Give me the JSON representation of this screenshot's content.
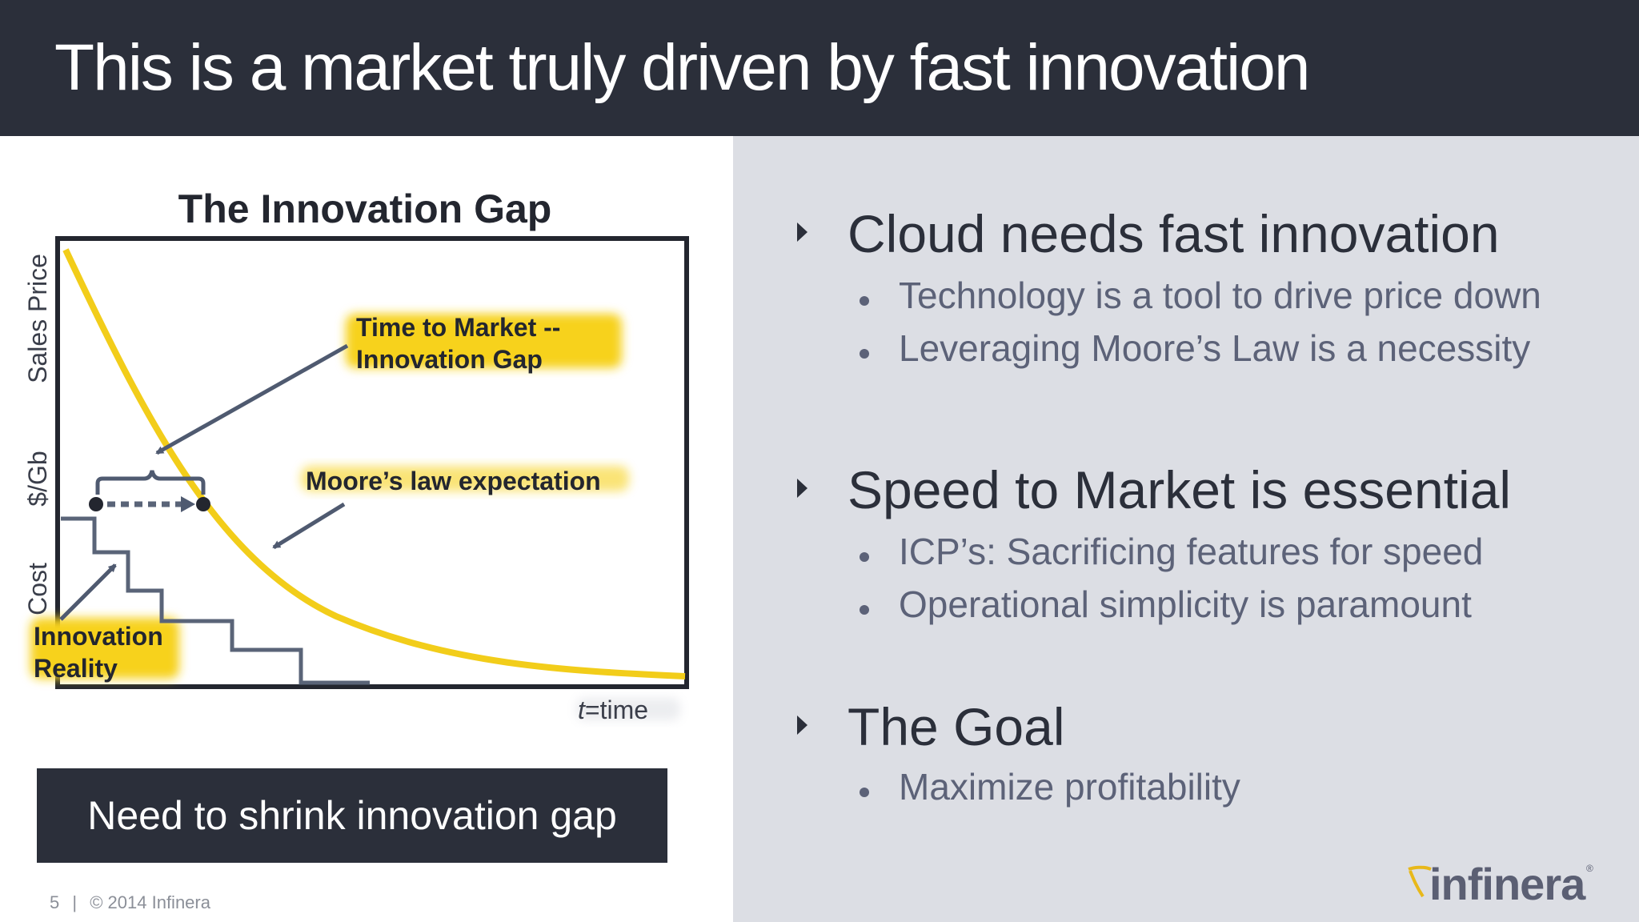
{
  "title": "This is a market truly driven by fast innovation",
  "diagram": {
    "title": "The Innovation Gap",
    "y_axis_labels": [
      "Sales Price",
      "$/Gb",
      "Cost"
    ],
    "x_axis_label_italic": "t",
    "x_axis_label_rest": "=time",
    "annotation_time_to_market_line1": "Time to Market --",
    "annotation_time_to_market_line2": "Innovation Gap",
    "annotation_moores_law": "Moore’s law expectation",
    "annotation_reality_line1": "Innovation",
    "annotation_reality_line2": "Reality",
    "colors": {
      "curve": "#f2cd1a",
      "highlight": "#f7d21f",
      "steps": "#5a6478",
      "frame": "#23262f",
      "arrows": "#4f5a70"
    }
  },
  "callout": "Need to shrink innovation gap",
  "footer": {
    "page_number": "5",
    "separator": "|",
    "copyright": "© 2014 Infinera"
  },
  "sections": [
    {
      "heading": "Cloud needs fast innovation",
      "items": [
        "Technology is a tool to drive price down",
        "Leveraging Moore’s Law is a necessity"
      ]
    },
    {
      "heading": "Speed to Market is essential",
      "items": [
        "ICP’s: Sacrificing features for speed",
        "Operational simplicity is paramount"
      ]
    },
    {
      "heading": "The Goal",
      "items": [
        "Maximize profitability"
      ]
    }
  ],
  "logo": {
    "text": "infinera",
    "registered": "®"
  }
}
